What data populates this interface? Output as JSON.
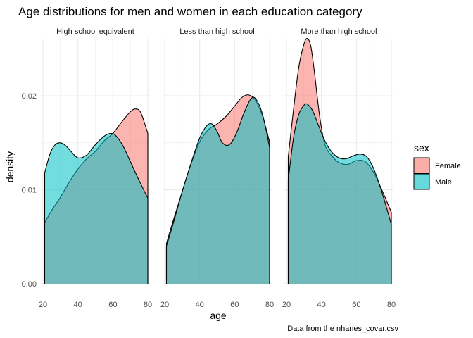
{
  "chart_data": {
    "type": "area",
    "title": "Age distributions for men and women in each education category",
    "xlabel": "age",
    "ylabel": "density",
    "caption": "Data from the nhanes_covar.csv",
    "xlim": [
      20,
      80
    ],
    "ylim": [
      0,
      0.026
    ],
    "x_ticks": [
      20,
      40,
      60,
      80
    ],
    "y_ticks": [
      0.0,
      0.01,
      0.02
    ],
    "y_tick_labels": [
      "0.00",
      "0.01",
      "0.02"
    ],
    "grid": true,
    "legend": {
      "title": "sex",
      "position": "right"
    },
    "colors": {
      "Female": "#F8766D",
      "Male": "#00BFC4"
    },
    "panels": [
      {
        "label": "High school equivalent",
        "series": [
          {
            "name": "Female",
            "x": [
              21,
              25,
              30,
              35,
              40,
              45,
              50,
              55,
              60,
              65,
              70,
              73,
              76,
              80
            ],
            "y": [
              0.0065,
              0.0078,
              0.0092,
              0.0108,
              0.0122,
              0.0133,
              0.0141,
              0.0152,
              0.016,
              0.0172,
              0.0183,
              0.0186,
              0.0182,
              0.016
            ]
          },
          {
            "name": "Male",
            "x": [
              21,
              24,
              27,
              30,
              33,
              36,
              40,
              45,
              50,
              55,
              59,
              62,
              66,
              70,
              75,
              80
            ],
            "y": [
              0.0118,
              0.0138,
              0.0148,
              0.015,
              0.0147,
              0.0141,
              0.0134,
              0.0137,
              0.0148,
              0.0157,
              0.016,
              0.0157,
              0.0146,
              0.013,
              0.011,
              0.0091
            ]
          }
        ]
      },
      {
        "label": "Less than high school",
        "series": [
          {
            "name": "Female",
            "x": [
              21,
              25,
              30,
              35,
              40,
              45,
              50,
              55,
              60,
              64,
              68,
              72,
              76,
              80
            ],
            "y": [
              0.0043,
              0.0068,
              0.0098,
              0.0127,
              0.0151,
              0.0164,
              0.017,
              0.0178,
              0.0189,
              0.0198,
              0.0201,
              0.0195,
              0.0178,
              0.0151
            ]
          },
          {
            "name": "Male",
            "x": [
              21,
              25,
              30,
              35,
              40,
              44,
              47,
              50,
              53,
              57,
              61,
              65,
              69,
              72,
              76,
              80
            ],
            "y": [
              0.004,
              0.0065,
              0.0098,
              0.0128,
              0.0155,
              0.0168,
              0.017,
              0.0162,
              0.015,
              0.0148,
              0.016,
              0.018,
              0.0196,
              0.0197,
              0.018,
              0.0145
            ]
          }
        ]
      },
      {
        "label": "More than high school",
        "series": [
          {
            "name": "Female",
            "x": [
              21,
              24,
              27,
              30,
              32,
              34,
              36,
              39,
              42,
              46,
              50,
              55,
              60,
              65,
              70,
              75,
              80
            ],
            "y": [
              0.0135,
              0.0185,
              0.023,
              0.0255,
              0.0261,
              0.0252,
              0.0225,
              0.0178,
              0.0148,
              0.0136,
              0.0129,
              0.0127,
              0.0131,
              0.013,
              0.0118,
              0.0098,
              0.0076
            ]
          },
          {
            "name": "Male",
            "x": [
              21,
              24,
              27,
              30,
              32,
              35,
              38,
              42,
              46,
              50,
              54,
              58,
              62,
              66,
              70,
              75,
              80
            ],
            "y": [
              0.011,
              0.0155,
              0.018,
              0.019,
              0.0191,
              0.0184,
              0.017,
              0.0152,
              0.014,
              0.0134,
              0.0133,
              0.0136,
              0.0138,
              0.0135,
              0.0122,
              0.0095,
              0.0063
            ]
          }
        ]
      }
    ]
  }
}
